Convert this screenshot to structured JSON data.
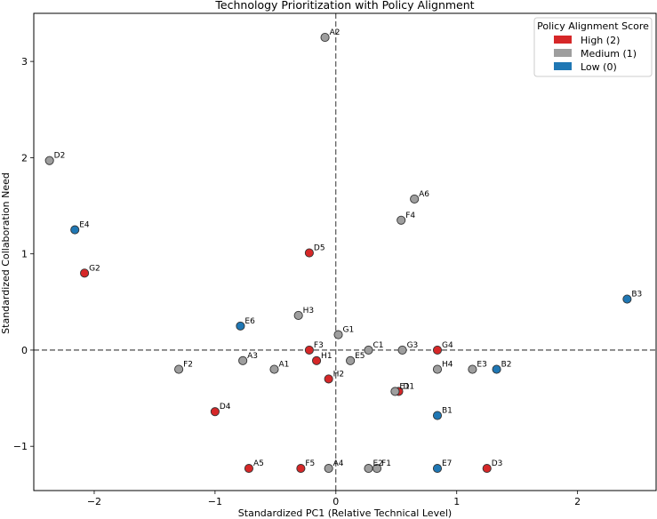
{
  "chart_data": {
    "type": "scatter",
    "title": "Technology Prioritization with Policy Alignment",
    "xlabel": "Standardized PC1 (Relative Technical Level)",
    "ylabel": "Standardized Collaboration Need",
    "xlim": [
      -2.5,
      2.65
    ],
    "ylim": [
      -1.46,
      3.5
    ],
    "xticks": [
      -2,
      -1,
      0,
      1,
      2
    ],
    "yticks": [
      -1,
      0,
      1,
      2,
      3
    ],
    "tick_labels_x": [
      "−2",
      "−1",
      "0",
      "1",
      "2"
    ],
    "tick_labels_y": [
      "−1",
      "0",
      "1",
      "2",
      "3"
    ],
    "reference_lines": {
      "x": 0,
      "y": 0,
      "style": "dashed"
    },
    "grid": false,
    "legend": {
      "title": "Policy Alignment Score",
      "placement": "top-right",
      "entries": [
        {
          "label": "High (2)",
          "color": "#d62728"
        },
        {
          "label": "Medium (1)",
          "color": "#9e9e9e"
        },
        {
          "label": "Low (0)",
          "color": "#1f77b4"
        }
      ]
    },
    "colors": {
      "high": "#d62728",
      "medium": "#9e9e9e",
      "low": "#1f77b4"
    },
    "points": [
      {
        "label": "A2",
        "x": -0.09,
        "y": 3.25,
        "score": 1
      },
      {
        "label": "D2",
        "x": -2.37,
        "y": 1.97,
        "score": 1
      },
      {
        "label": "A6",
        "x": 0.65,
        "y": 1.57,
        "score": 1
      },
      {
        "label": "F4",
        "x": 0.54,
        "y": 1.35,
        "score": 1
      },
      {
        "label": "E4",
        "x": -2.16,
        "y": 1.25,
        "score": 0
      },
      {
        "label": "D5",
        "x": -0.22,
        "y": 1.01,
        "score": 2
      },
      {
        "label": "G2",
        "x": -2.08,
        "y": 0.8,
        "score": 2
      },
      {
        "label": "B3",
        "x": 2.41,
        "y": 0.53,
        "score": 0
      },
      {
        "label": "H3",
        "x": -0.31,
        "y": 0.36,
        "score": 1
      },
      {
        "label": "E6",
        "x": -0.79,
        "y": 0.25,
        "score": 0
      },
      {
        "label": "G1",
        "x": 0.02,
        "y": 0.16,
        "score": 1
      },
      {
        "label": "F3",
        "x": -0.22,
        "y": 0.0,
        "score": 2
      },
      {
        "label": "C1",
        "x": 0.27,
        "y": 0.0,
        "score": 1
      },
      {
        "label": "G3",
        "x": 0.55,
        "y": 0.0,
        "score": 1
      },
      {
        "label": "G4",
        "x": 0.84,
        "y": 0.0,
        "score": 2
      },
      {
        "label": "A3",
        "x": -0.77,
        "y": -0.11,
        "score": 1
      },
      {
        "label": "H1",
        "x": -0.16,
        "y": -0.11,
        "score": 2
      },
      {
        "label": "E5",
        "x": 0.12,
        "y": -0.11,
        "score": 1
      },
      {
        "label": "F2",
        "x": -1.3,
        "y": -0.2,
        "score": 1
      },
      {
        "label": "A1",
        "x": -0.51,
        "y": -0.2,
        "score": 1
      },
      {
        "label": "H4",
        "x": 0.84,
        "y": -0.2,
        "score": 1
      },
      {
        "label": "E3",
        "x": 1.13,
        "y": -0.2,
        "score": 1
      },
      {
        "label": "B2",
        "x": 1.33,
        "y": -0.2,
        "score": 0
      },
      {
        "label": "H2",
        "x": -0.06,
        "y": -0.3,
        "score": 2
      },
      {
        "label": "D1",
        "x": 0.52,
        "y": -0.43,
        "score": 2
      },
      {
        "label": "E1",
        "x": 0.49,
        "y": -0.43,
        "score": 1
      },
      {
        "label": "D4",
        "x": -1.0,
        "y": -0.64,
        "score": 2
      },
      {
        "label": "B1",
        "x": 0.84,
        "y": -0.68,
        "score": 0
      },
      {
        "label": "A5",
        "x": -0.72,
        "y": -1.23,
        "score": 2
      },
      {
        "label": "F5",
        "x": -0.29,
        "y": -1.23,
        "score": 2
      },
      {
        "label": "A4",
        "x": -0.06,
        "y": -1.23,
        "score": 1
      },
      {
        "label": "E2",
        "x": 0.27,
        "y": -1.23,
        "score": 1
      },
      {
        "label": "F1",
        "x": 0.34,
        "y": -1.23,
        "score": 1
      },
      {
        "label": "E7",
        "x": 0.84,
        "y": -1.23,
        "score": 0
      },
      {
        "label": "D3",
        "x": 1.25,
        "y": -1.23,
        "score": 2
      }
    ]
  }
}
